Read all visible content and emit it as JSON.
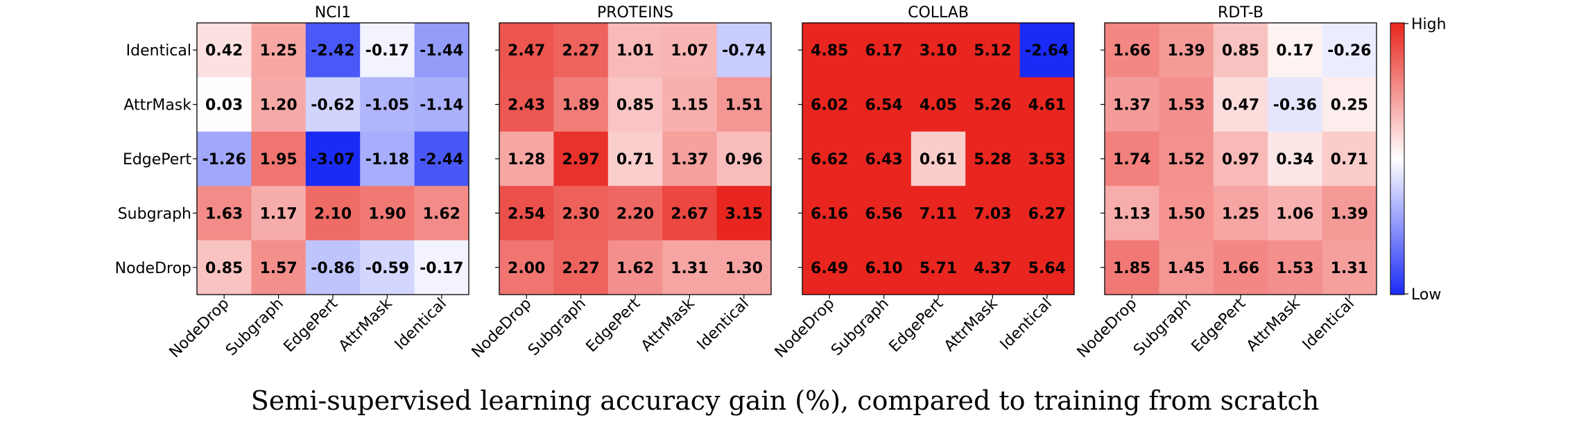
{
  "caption": "Semi-supervised learning accuracy gain (%), compared to training from scratch",
  "colorbar": {
    "high_label": "High",
    "low_label": "Low",
    "high_color": "#e8261f",
    "mid_color": "#ffffff",
    "low_color": "#1a2bf5"
  },
  "chart_data": [
    {
      "type": "heatmap",
      "title": "NCI1",
      "rows": [
        "Identical",
        "AttrMask",
        "EdgePert",
        "Subgraph",
        "NodeDrop"
      ],
      "columns": [
        "NodeDrop",
        "Subgraph",
        "EdgePert",
        "AttrMask",
        "Identical"
      ],
      "labels": [
        [
          "0.42",
          "1.25",
          "-2.42",
          "-0.17",
          "-1.44"
        ],
        [
          "0.03",
          "1.20",
          "-0.62",
          "-1.05",
          "-1.14"
        ],
        [
          "-1.26",
          "1.95",
          "-3.07",
          "-1.18",
          "-2.44"
        ],
        [
          "1.63",
          "1.17",
          "2.10",
          "1.90",
          "1.62"
        ],
        [
          "0.85",
          "1.57",
          "-0.86",
          "-0.59",
          "-0.17"
        ]
      ],
      "values": [
        [
          0.42,
          1.25,
          -2.42,
          -0.17,
          -1.44
        ],
        [
          0.03,
          1.2,
          -0.62,
          -1.05,
          -1.14
        ],
        [
          -1.26,
          1.95,
          -3.07,
          -1.18,
          -2.44
        ],
        [
          1.63,
          1.17,
          2.1,
          1.9,
          1.62
        ],
        [
          0.85,
          1.57,
          -0.86,
          -0.59,
          -0.17
        ]
      ],
      "vmin": -3.07,
      "vmax": 3.07,
      "row_labels_visible": true
    },
    {
      "type": "heatmap",
      "title": "PROTEINS",
      "rows": [
        "Identical",
        "AttrMask",
        "EdgePert",
        "Subgraph",
        "NodeDrop"
      ],
      "columns": [
        "NodeDrop",
        "Subgraph",
        "EdgePert",
        "AttrMask",
        "Identical"
      ],
      "labels": [
        [
          "2.47",
          "2.27",
          "1.01",
          "1.07",
          "-0.74"
        ],
        [
          "2.43",
          "1.89",
          "0.85",
          "1.15",
          "1.51"
        ],
        [
          "1.28",
          "2.97",
          "0.71",
          "1.37",
          "0.96"
        ],
        [
          "2.54",
          "2.30",
          "2.20",
          "2.67",
          "3.15"
        ],
        [
          "2.00",
          "2.27",
          "1.62",
          "1.31",
          "1.30"
        ]
      ],
      "values": [
        [
          2.47,
          2.27,
          1.01,
          1.07,
          -0.74
        ],
        [
          2.43,
          1.89,
          0.85,
          1.15,
          1.51
        ],
        [
          1.28,
          2.97,
          0.71,
          1.37,
          0.96
        ],
        [
          2.54,
          2.3,
          2.2,
          2.67,
          3.15
        ],
        [
          2.0,
          2.27,
          1.62,
          1.31,
          1.3
        ]
      ],
      "vmin": -3.15,
      "vmax": 3.15,
      "row_labels_visible": false
    },
    {
      "type": "heatmap",
      "title": "COLLAB",
      "rows": [
        "Identical",
        "AttrMask",
        "EdgePert",
        "Subgraph",
        "NodeDrop"
      ],
      "columns": [
        "NodeDrop",
        "Subgraph",
        "EdgePert",
        "AttrMask",
        "Identical"
      ],
      "labels": [
        [
          "4.85",
          "6.17",
          "3.10",
          "5.12",
          "-2.64"
        ],
        [
          "6.02",
          "6.54",
          "4.05",
          "5.26",
          "4.61"
        ],
        [
          "6.62",
          "6.43",
          "0.61",
          "5.28",
          "3.53"
        ],
        [
          "6.16",
          "6.56",
          "7.11",
          "7.03",
          "6.27"
        ],
        [
          "6.49",
          "6.10",
          "5.71",
          "4.37",
          "5.64"
        ]
      ],
      "values": [
        [
          4.85,
          6.17,
          3.1,
          5.12,
          -2.64
        ],
        [
          6.02,
          6.54,
          4.05,
          5.26,
          4.61
        ],
        [
          6.62,
          6.43,
          0.61,
          5.28,
          3.53
        ],
        [
          6.16,
          6.56,
          7.11,
          7.03,
          6.27
        ],
        [
          6.49,
          6.1,
          5.71,
          4.37,
          5.64
        ]
      ],
      "vmin": -2.64,
      "vmax": 2.64,
      "row_labels_visible": false
    },
    {
      "type": "heatmap",
      "title": "RDT-B",
      "rows": [
        "Identical",
        "AttrMask",
        "EdgePert",
        "Subgraph",
        "NodeDrop"
      ],
      "columns": [
        "NodeDrop",
        "Subgraph",
        "EdgePert",
        "AttrMask",
        "Identical"
      ],
      "labels": [
        [
          "1.66",
          "1.39",
          "0.85",
          "0.17",
          "-0.26"
        ],
        [
          "1.37",
          "1.53",
          "0.47",
          "-0.36",
          "0.25"
        ],
        [
          "1.74",
          "1.52",
          "0.97",
          "0.34",
          "0.71"
        ],
        [
          "1.13",
          "1.50",
          "1.25",
          "1.06",
          "1.39"
        ],
        [
          "1.85",
          "1.45",
          "1.66",
          "1.53",
          "1.31"
        ]
      ],
      "values": [
        [
          1.66,
          1.39,
          0.85,
          0.17,
          -0.26
        ],
        [
          1.37,
          1.53,
          0.47,
          -0.36,
          0.25
        ],
        [
          1.74,
          1.52,
          0.97,
          0.34,
          0.71
        ],
        [
          1.13,
          1.5,
          1.25,
          1.06,
          1.39
        ],
        [
          1.85,
          1.45,
          1.66,
          1.53,
          1.31
        ]
      ],
      "vmin": -3.0,
      "vmax": 3.0,
      "row_labels_visible": false
    }
  ]
}
